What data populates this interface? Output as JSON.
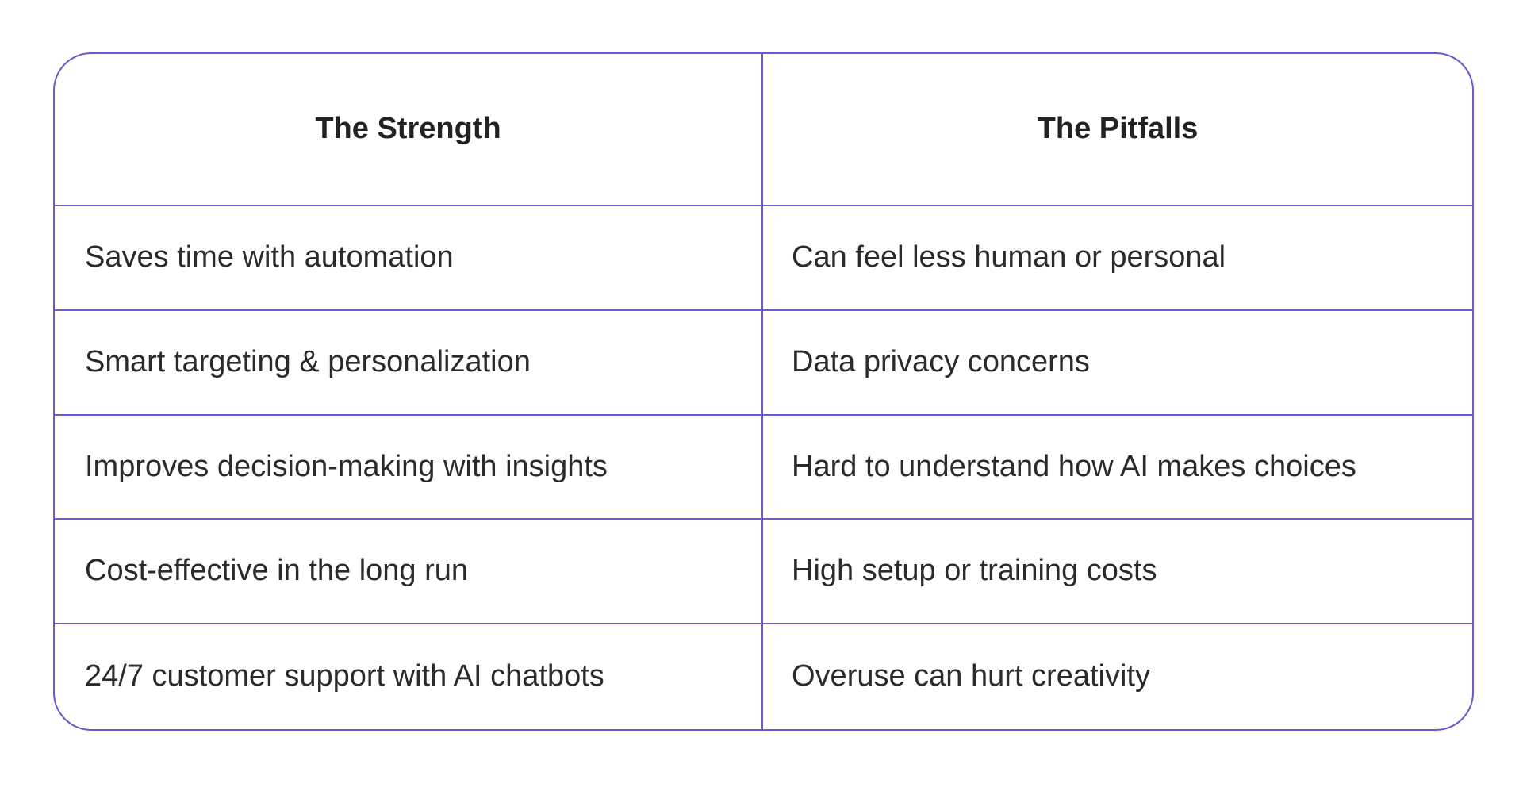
{
  "table": {
    "headers": {
      "strength": "The Strength",
      "pitfalls": "The Pitfalls"
    },
    "rows": [
      {
        "strength": "Saves time with automation",
        "pitfall": "Can feel less human or personal"
      },
      {
        "strength": "Smart targeting & personalization",
        "pitfall": "Data privacy concerns"
      },
      {
        "strength": "Improves decision-making with insights",
        "pitfall": "Hard to understand how AI makes choices"
      },
      {
        "strength": "Cost-effective in the long run",
        "pitfall": "High setup or training costs"
      },
      {
        "strength": "24/7 customer support with AI chatbots",
        "pitfall": "Overuse can hurt creativity"
      }
    ],
    "colors": {
      "border": "#6a5acd",
      "text": "#2b2b2b",
      "background": "#ffffff"
    }
  }
}
